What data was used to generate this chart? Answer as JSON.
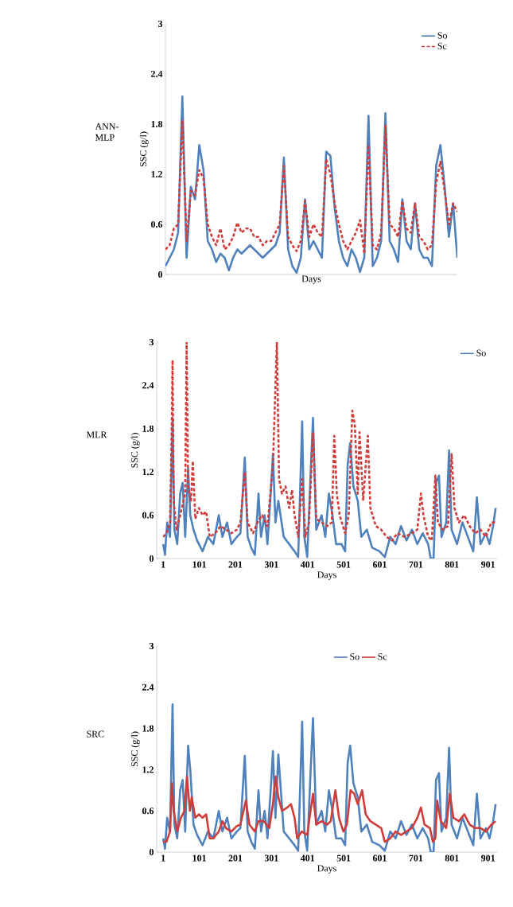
{
  "chart_data": [
    {
      "type": "line",
      "title": "ANN-MLP",
      "xlabel": "Days",
      "ylabel": "SSC (g/l)",
      "categories": [
        null,
        null,
        null,
        null,
        null,
        null,
        null,
        null,
        null,
        null,
        null,
        null,
        null,
        null,
        null,
        null,
        null,
        null,
        null,
        null,
        null,
        null,
        null,
        null,
        null,
        null,
        null,
        null,
        null,
        null,
        null,
        null,
        null,
        null,
        null,
        null,
        null,
        null,
        null,
        null,
        null,
        null,
        null,
        null,
        null,
        null,
        null,
        null,
        null,
        null,
        null,
        null,
        null,
        null,
        null,
        null,
        null,
        null,
        null,
        null,
        null,
        null,
        null,
        null,
        null,
        null,
        null,
        null,
        null,
        null
      ],
      "ylim": [
        0,
        3
      ],
      "yticks": [
        0,
        0.6,
        1.2,
        1.8,
        2.4,
        3
      ],
      "legend": "top right",
      "series": [
        {
          "name": "So",
          "color": "#4f81bd",
          "line_style": "solid",
          "values": [
            0.1,
            0.2,
            0.3,
            0.5,
            2.13,
            0.2,
            1.05,
            0.9,
            1.55,
            1.25,
            0.4,
            0.3,
            0.15,
            0.25,
            0.2,
            0.05,
            0.2,
            0.3,
            0.25,
            0.3,
            0.35,
            0.3,
            0.25,
            0.2,
            0.25,
            0.3,
            0.35,
            0.5,
            1.4,
            0.3,
            0.1,
            0.02,
            0.2,
            0.9,
            0.3,
            0.4,
            0.3,
            0.2,
            1.47,
            1.42,
            0.8,
            0.4,
            0.2,
            0.1,
            0.3,
            0.2,
            0.03,
            0.2,
            1.9,
            0.1,
            0.2,
            0.4,
            1.93,
            0.4,
            0.3,
            0.15,
            0.9,
            0.4,
            0.3,
            0.85,
            0.3,
            0.2,
            0.2,
            0.1,
            1.3,
            1.55,
            1.05,
            0.45,
            0.85,
            0.2
          ]
        },
        {
          "name": "Sc",
          "color": "#d03c3a",
          "line_style": "dashed",
          "values": [
            0.3,
            0.35,
            0.55,
            0.6,
            1.85,
            0.4,
            1.0,
            0.95,
            1.25,
            1.15,
            0.6,
            0.45,
            0.35,
            0.55,
            0.3,
            0.35,
            0.45,
            0.62,
            0.5,
            0.55,
            0.55,
            0.45,
            0.45,
            0.35,
            0.4,
            0.4,
            0.5,
            0.6,
            1.3,
            0.45,
            0.35,
            0.28,
            0.4,
            0.88,
            0.45,
            0.6,
            0.5,
            0.45,
            1.38,
            1.2,
            0.85,
            0.6,
            0.4,
            0.3,
            0.4,
            0.5,
            0.65,
            0.25,
            1.55,
            0.35,
            0.3,
            0.5,
            1.78,
            0.6,
            0.55,
            0.45,
            0.88,
            0.55,
            0.5,
            0.85,
            0.45,
            0.4,
            0.3,
            0.35,
            1.1,
            1.35,
            1.0,
            0.6,
            0.85,
            0.75
          ]
        }
      ]
    },
    {
      "type": "line",
      "title": "MLR",
      "xlabel": "Days",
      "ylabel": "SSC (g/l)",
      "xlim": [
        -17,
        926
      ],
      "ylim": [
        0,
        3
      ],
      "xticks": [
        1,
        101,
        201,
        301,
        401,
        501,
        601,
        701,
        801,
        901
      ],
      "yticks": [
        0,
        0.6,
        1.2,
        1.8,
        2.4,
        3
      ],
      "legend": "top right",
      "series": [
        {
          "name": "So",
          "color": "#4f81bd",
          "line_style": "solid",
          "x": [
            1,
            6,
            12,
            20,
            27,
            32,
            40,
            48,
            55,
            62,
            70,
            76,
            85,
            95,
            110,
            125,
            140,
            155,
            165,
            178,
            190,
            205,
            215,
            227,
            235,
            245,
            255,
            265,
            272,
            282,
            290,
            300,
            305,
            312,
            320,
            335,
            350,
            365,
            375,
            386,
            392,
            400,
            410,
            416,
            425,
            440,
            450,
            460,
            470,
            480,
            495,
            505,
            512,
            519,
            528,
            540,
            550,
            565,
            580,
            600,
            615,
            630,
            645,
            660,
            675,
            690,
            705,
            720,
            735,
            742,
            750,
            757,
            765,
            772,
            785,
            793,
            800,
            815,
            830,
            845,
            860,
            870,
            880,
            895,
            905,
            915,
            922
          ],
          "values": [
            0.2,
            0.05,
            0.5,
            0.3,
            1.95,
            0.4,
            0.2,
            0.9,
            1.05,
            0.3,
            1.25,
            0.6,
            0.4,
            0.25,
            0.1,
            0.3,
            0.2,
            0.6,
            0.3,
            0.5,
            0.2,
            0.3,
            0.35,
            1.4,
            0.3,
            0.15,
            0.05,
            0.9,
            0.3,
            0.6,
            0.2,
            1.0,
            1.45,
            0.5,
            0.8,
            0.3,
            0.2,
            0.1,
            0.02,
            1.9,
            0.3,
            0.02,
            1.25,
            1.95,
            0.4,
            0.6,
            0.3,
            0.9,
            0.6,
            0.2,
            0.2,
            0.1,
            1.3,
            1.6,
            1.0,
            0.8,
            0.3,
            0.4,
            0.15,
            0.1,
            0.02,
            0.3,
            0.2,
            0.45,
            0.25,
            0.4,
            0.2,
            0.35,
            0.2,
            0,
            0,
            1.05,
            1.15,
            0.3,
            0.5,
            1.5,
            0.4,
            0.2,
            0.5,
            0.3,
            0.1,
            0.85,
            0.2,
            0.35,
            0.2,
            0.45,
            0.7
          ]
        },
        {
          "color": "#d03c3a",
          "line_style": "dashed",
          "x": [
            1,
            10,
            20,
            25,
            27,
            30,
            38,
            48,
            55,
            62,
            66,
            70,
            78,
            83,
            90,
            100,
            110,
            120,
            130,
            145,
            160,
            175,
            190,
            205,
            215,
            227,
            235,
            250,
            262,
            275,
            290,
            305,
            316,
            322,
            330,
            340,
            350,
            358,
            365,
            375,
            386,
            395,
            405,
            416,
            425,
            440,
            455,
            468,
            475,
            482,
            490,
            505,
            515,
            525,
            532,
            540,
            545,
            555,
            568,
            575,
            590,
            605,
            620,
            635,
            650,
            670,
            690,
            705,
            715,
            722,
            735,
            745,
            755,
            762,
            775,
            790,
            800,
            808,
            820,
            835,
            850,
            865,
            880,
            895,
            910,
            922
          ],
          "values": [
            0.3,
            0.35,
            0.5,
            1.9,
            2.75,
            0.8,
            0.4,
            0.6,
            0.75,
            0.9,
            3.0,
            1.0,
            0.8,
            1.35,
            0.55,
            0.7,
            0.6,
            0.65,
            0.3,
            0.35,
            0.45,
            0.4,
            0.35,
            0.4,
            0.5,
            1.2,
            0.5,
            0.35,
            0.5,
            0.6,
            0.45,
            1.3,
            3.0,
            1.1,
            0.9,
            1.0,
            0.7,
            0.95,
            0.6,
            0.3,
            1.1,
            0.3,
            0.5,
            1.75,
            0.55,
            0.5,
            0.45,
            0.5,
            1.7,
            0.9,
            0.6,
            0.35,
            0.6,
            2.05,
            1.85,
            0.9,
            1.75,
            0.8,
            1.7,
            0.7,
            0.45,
            0.4,
            0.3,
            0.25,
            0.35,
            0.3,
            0.35,
            0.4,
            0.9,
            0.6,
            0.3,
            0.25,
            1.15,
            0.5,
            0.4,
            0.45,
            1.45,
            0.7,
            0.5,
            0.6,
            0.45,
            0.35,
            0.4,
            0.3,
            0.5,
            0.5
          ]
        }
      ]
    },
    {
      "type": "line",
      "title": "SRC",
      "xlabel": "Days",
      "ylabel": "SSC (g/l)",
      "xlim": [
        -17,
        926
      ],
      "ylim": [
        0,
        3
      ],
      "xticks": [
        1,
        101,
        201,
        301,
        401,
        501,
        601,
        701,
        801,
        901
      ],
      "yticks": [
        0,
        0.6,
        1.2,
        1.8,
        2.4,
        3
      ],
      "legend": "top",
      "series": [
        {
          "name": "So",
          "color": "#4f81bd",
          "line_style": "solid",
          "x": [
            1,
            6,
            12,
            20,
            27,
            32,
            40,
            48,
            55,
            62,
            70,
            76,
            85,
            95,
            110,
            125,
            140,
            155,
            165,
            178,
            190,
            205,
            215,
            227,
            235,
            245,
            255,
            265,
            272,
            282,
            290,
            300,
            305,
            312,
            320,
            335,
            350,
            365,
            375,
            386,
            392,
            400,
            410,
            416,
            425,
            440,
            450,
            460,
            470,
            480,
            495,
            505,
            512,
            519,
            528,
            540,
            550,
            565,
            580,
            600,
            615,
            630,
            645,
            660,
            675,
            690,
            705,
            720,
            735,
            742,
            750,
            757,
            765,
            772,
            785,
            793,
            800,
            815,
            830,
            845,
            860,
            870,
            880,
            895,
            905,
            915,
            922
          ],
          "values": [
            0.2,
            0.05,
            0.5,
            0.3,
            2.15,
            0.4,
            0.2,
            0.9,
            1.05,
            0.3,
            1.55,
            1.2,
            0.4,
            0.25,
            0.1,
            0.3,
            0.2,
            0.6,
            0.3,
            0.5,
            0.2,
            0.3,
            0.35,
            1.4,
            0.3,
            0.15,
            0.05,
            0.9,
            0.3,
            0.6,
            0.2,
            1.0,
            1.47,
            0.5,
            1.42,
            0.3,
            0.2,
            0.1,
            0.02,
            1.9,
            0.3,
            0.02,
            1.25,
            1.95,
            0.4,
            0.6,
            0.3,
            0.9,
            0.6,
            0.2,
            0.2,
            0.1,
            1.3,
            1.55,
            1.0,
            0.8,
            0.3,
            0.4,
            0.15,
            0.1,
            0.02,
            0.3,
            0.2,
            0.45,
            0.25,
            0.4,
            0.2,
            0.35,
            0.2,
            0,
            0,
            1.05,
            1.15,
            0.3,
            0.5,
            1.52,
            0.4,
            0.2,
            0.5,
            0.3,
            0.1,
            0.85,
            0.2,
            0.35,
            0.2,
            0.45,
            0.7
          ]
        },
        {
          "name": "Sc",
          "color": "#d03c3a",
          "line_style": "solid",
          "x": [
            1,
            10,
            20,
            25,
            30,
            40,
            50,
            60,
            67,
            75,
            80,
            90,
            100,
            110,
            120,
            130,
            140,
            155,
            165,
            175,
            190,
            205,
            215,
            230,
            240,
            255,
            265,
            280,
            295,
            305,
            312,
            320,
            330,
            345,
            355,
            365,
            372,
            385,
            400,
            416,
            425,
            440,
            455,
            465,
            478,
            488,
            500,
            510,
            520,
            530,
            540,
            552,
            562,
            575,
            590,
            605,
            615,
            630,
            645,
            660,
            675,
            690,
            705,
            715,
            725,
            740,
            748,
            755,
            760,
            770,
            785,
            795,
            805,
            820,
            835,
            850,
            865,
            880,
            895,
            910,
            922
          ],
          "values": [
            0.15,
            0.15,
            0.3,
            1.0,
            0.6,
            0.3,
            0.5,
            0.6,
            1.1,
            0.6,
            0.8,
            0.5,
            0.55,
            0.5,
            0.55,
            0.2,
            0.2,
            0.3,
            0.45,
            0.35,
            0.3,
            0.38,
            0.4,
            0.75,
            0.4,
            0.3,
            0.45,
            0.45,
            0.35,
            0.7,
            1.1,
            0.8,
            0.6,
            0.65,
            0.7,
            0.5,
            0.2,
            0.3,
            0.25,
            0.85,
            0.4,
            0.45,
            0.4,
            0.45,
            0.9,
            0.5,
            0.3,
            0.4,
            0.9,
            0.85,
            0.7,
            0.9,
            0.55,
            0.45,
            0.4,
            0.35,
            0.15,
            0.2,
            0.3,
            0.25,
            0.3,
            0.35,
            0.5,
            0.65,
            0.4,
            0.35,
            0.15,
            0.2,
            0.75,
            0.45,
            0.35,
            0.85,
            0.5,
            0.45,
            0.55,
            0.4,
            0.35,
            0.35,
            0.3,
            0.4,
            0.45
          ]
        }
      ]
    }
  ]
}
